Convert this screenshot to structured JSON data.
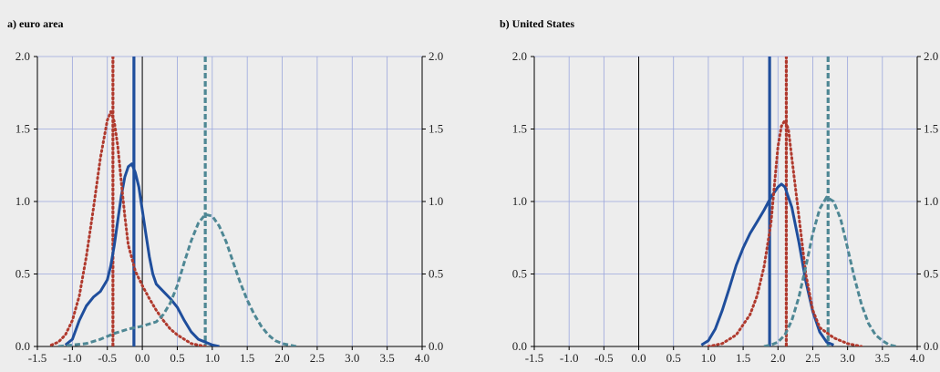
{
  "chart_data": [
    {
      "type": "line",
      "title": "a) euro area",
      "xlim": [
        -1.5,
        4.0
      ],
      "ylim": [
        0.0,
        2.0
      ],
      "x_ticks": [
        "-1.5",
        "-1.0",
        "-0.5",
        "0.0",
        "0.5",
        "1.0",
        "1.5",
        "2.0",
        "2.5",
        "3.0",
        "3.5",
        "4.0"
      ],
      "y_ticks": [
        "0.0",
        "0.5",
        "1.0",
        "1.5",
        "2.0"
      ],
      "grid": true,
      "dual_y_axis": true,
      "series": [
        {
          "style": "solid",
          "color": "#1f4e9c",
          "points": [
            [
              -1.1,
              0.01
            ],
            [
              -1.0,
              0.05
            ],
            [
              -0.9,
              0.18
            ],
            [
              -0.8,
              0.28
            ],
            [
              -0.7,
              0.34
            ],
            [
              -0.6,
              0.38
            ],
            [
              -0.5,
              0.46
            ],
            [
              -0.45,
              0.56
            ],
            [
              -0.4,
              0.7
            ],
            [
              -0.35,
              0.87
            ],
            [
              -0.3,
              1.04
            ],
            [
              -0.25,
              1.17
            ],
            [
              -0.2,
              1.24
            ],
            [
              -0.15,
              1.26
            ],
            [
              -0.1,
              1.2
            ],
            [
              -0.05,
              1.1
            ],
            [
              0.0,
              0.94
            ],
            [
              0.05,
              0.78
            ],
            [
              0.1,
              0.62
            ],
            [
              0.15,
              0.5
            ],
            [
              0.2,
              0.43
            ],
            [
              0.3,
              0.38
            ],
            [
              0.4,
              0.33
            ],
            [
              0.5,
              0.27
            ],
            [
              0.6,
              0.18
            ],
            [
              0.7,
              0.1
            ],
            [
              0.8,
              0.05
            ],
            [
              0.9,
              0.03
            ],
            [
              1.0,
              0.01
            ],
            [
              1.1,
              0.0
            ]
          ],
          "vline": -0.12
        },
        {
          "style": "dotted",
          "color": "#b03a2e",
          "points": [
            [
              -1.3,
              0.01
            ],
            [
              -1.2,
              0.03
            ],
            [
              -1.1,
              0.08
            ],
            [
              -1.0,
              0.18
            ],
            [
              -0.9,
              0.35
            ],
            [
              -0.8,
              0.62
            ],
            [
              -0.7,
              0.95
            ],
            [
              -0.6,
              1.3
            ],
            [
              -0.5,
              1.56
            ],
            [
              -0.45,
              1.62
            ],
            [
              -0.4,
              1.55
            ],
            [
              -0.35,
              1.38
            ],
            [
              -0.3,
              1.13
            ],
            [
              -0.25,
              0.9
            ],
            [
              -0.2,
              0.7
            ],
            [
              -0.1,
              0.52
            ],
            [
              0.0,
              0.42
            ],
            [
              0.1,
              0.33
            ],
            [
              0.2,
              0.25
            ],
            [
              0.3,
              0.18
            ],
            [
              0.4,
              0.12
            ],
            [
              0.5,
              0.08
            ],
            [
              0.6,
              0.05
            ],
            [
              0.7,
              0.02
            ],
            [
              0.8,
              0.01
            ],
            [
              0.9,
              0.0
            ]
          ],
          "vline": -0.42
        },
        {
          "style": "dashed",
          "color": "#4e8794",
          "points": [
            [
              -1.2,
              0.0
            ],
            [
              -1.0,
              0.01
            ],
            [
              -0.8,
              0.02
            ],
            [
              -0.6,
              0.05
            ],
            [
              -0.4,
              0.09
            ],
            [
              -0.2,
              0.12
            ],
            [
              0.0,
              0.14
            ],
            [
              0.2,
              0.17
            ],
            [
              0.3,
              0.22
            ],
            [
              0.4,
              0.3
            ],
            [
              0.5,
              0.42
            ],
            [
              0.6,
              0.58
            ],
            [
              0.7,
              0.73
            ],
            [
              0.8,
              0.85
            ],
            [
              0.9,
              0.91
            ],
            [
              1.0,
              0.9
            ],
            [
              1.1,
              0.83
            ],
            [
              1.2,
              0.72
            ],
            [
              1.3,
              0.58
            ],
            [
              1.4,
              0.44
            ],
            [
              1.5,
              0.32
            ],
            [
              1.6,
              0.22
            ],
            [
              1.7,
              0.14
            ],
            [
              1.8,
              0.08
            ],
            [
              1.9,
              0.04
            ],
            [
              2.0,
              0.02
            ],
            [
              2.1,
              0.01
            ],
            [
              2.2,
              0.0
            ]
          ],
          "vline": 0.9
        }
      ]
    },
    {
      "type": "line",
      "title": "b) United States",
      "xlim": [
        -1.5,
        4.0
      ],
      "ylim": [
        0.0,
        2.0
      ],
      "x_ticks": [
        "-1.5",
        "-1.0",
        "-0.5",
        "0.0",
        "0.5",
        "1.0",
        "1.5",
        "2.0",
        "2.5",
        "3.0",
        "3.5",
        "4.0"
      ],
      "y_ticks": [
        "0.0",
        "0.5",
        "1.0",
        "1.5",
        "2.0"
      ],
      "grid": true,
      "dual_y_axis": true,
      "series": [
        {
          "style": "solid",
          "color": "#1f4e9c",
          "points": [
            [
              0.9,
              0.01
            ],
            [
              1.0,
              0.04
            ],
            [
              1.1,
              0.12
            ],
            [
              1.2,
              0.25
            ],
            [
              1.3,
              0.4
            ],
            [
              1.4,
              0.56
            ],
            [
              1.5,
              0.68
            ],
            [
              1.6,
              0.78
            ],
            [
              1.7,
              0.86
            ],
            [
              1.8,
              0.94
            ],
            [
              1.9,
              1.03
            ],
            [
              2.0,
              1.1
            ],
            [
              2.05,
              1.12
            ],
            [
              2.1,
              1.1
            ],
            [
              2.2,
              0.96
            ],
            [
              2.3,
              0.72
            ],
            [
              2.4,
              0.45
            ],
            [
              2.5,
              0.24
            ],
            [
              2.6,
              0.1
            ],
            [
              2.7,
              0.03
            ],
            [
              2.8,
              0.01
            ]
          ],
          "vline": 1.88
        },
        {
          "style": "dotted",
          "color": "#b03a2e",
          "points": [
            [
              1.0,
              0.0
            ],
            [
              1.2,
              0.02
            ],
            [
              1.4,
              0.08
            ],
            [
              1.6,
              0.22
            ],
            [
              1.7,
              0.35
            ],
            [
              1.8,
              0.55
            ],
            [
              1.9,
              0.85
            ],
            [
              1.95,
              1.12
            ],
            [
              2.0,
              1.38
            ],
            [
              2.05,
              1.52
            ],
            [
              2.1,
              1.56
            ],
            [
              2.15,
              1.5
            ],
            [
              2.2,
              1.3
            ],
            [
              2.3,
              0.9
            ],
            [
              2.4,
              0.5
            ],
            [
              2.5,
              0.25
            ],
            [
              2.6,
              0.13
            ],
            [
              2.8,
              0.06
            ],
            [
              3.0,
              0.02
            ],
            [
              3.2,
              0.0
            ]
          ],
          "vline": 2.12
        },
        {
          "style": "dashed",
          "color": "#4e8794",
          "points": [
            [
              1.8,
              0.0
            ],
            [
              1.9,
              0.01
            ],
            [
              2.0,
              0.03
            ],
            [
              2.1,
              0.08
            ],
            [
              2.2,
              0.18
            ],
            [
              2.3,
              0.34
            ],
            [
              2.4,
              0.55
            ],
            [
              2.5,
              0.78
            ],
            [
              2.6,
              0.95
            ],
            [
              2.7,
              1.03
            ],
            [
              2.8,
              1.0
            ],
            [
              2.9,
              0.88
            ],
            [
              3.0,
              0.68
            ],
            [
              3.1,
              0.47
            ],
            [
              3.2,
              0.29
            ],
            [
              3.3,
              0.16
            ],
            [
              3.4,
              0.08
            ],
            [
              3.5,
              0.04
            ],
            [
              3.6,
              0.01
            ],
            [
              3.7,
              0.0
            ]
          ],
          "vline": 2.72
        }
      ]
    }
  ]
}
